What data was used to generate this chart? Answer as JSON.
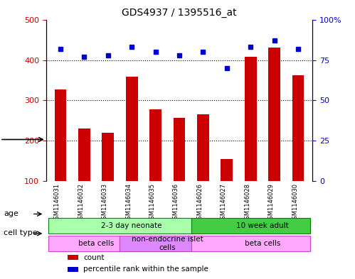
{
  "title": "GDS4937 / 1395516_at",
  "samples": [
    "GSM1146031",
    "GSM1146032",
    "GSM1146033",
    "GSM1146034",
    "GSM1146035",
    "GSM1146036",
    "GSM1146026",
    "GSM1146027",
    "GSM1146028",
    "GSM1146029",
    "GSM1146030"
  ],
  "counts": [
    328,
    230,
    220,
    358,
    278,
    257,
    265,
    155,
    408,
    430,
    362
  ],
  "percentiles": [
    82,
    77,
    78,
    83,
    80,
    78,
    80,
    70,
    83,
    87,
    82
  ],
  "bar_color": "#cc0000",
  "dot_color": "#0000cc",
  "ylim_left": [
    100,
    500
  ],
  "ylim_right": [
    0,
    100
  ],
  "yticks_left": [
    100,
    200,
    300,
    400,
    500
  ],
  "ytick_labels_left": [
    "100",
    "200",
    "300",
    "400",
    "500"
  ],
  "yticks_right": [
    0,
    25,
    50,
    75,
    100
  ],
  "ytick_labels_right": [
    "0",
    "25",
    "50",
    "75",
    "100%"
  ],
  "grid_values": [
    200,
    300,
    400
  ],
  "age_groups": [
    {
      "label": "2-3 day neonate",
      "start": 0,
      "end": 6,
      "color": "#aaffaa"
    },
    {
      "label": "10 week adult",
      "start": 6,
      "end": 11,
      "color": "#44cc44"
    }
  ],
  "cell_type_groups": [
    {
      "label": "beta cells",
      "start": 0,
      "end": 3,
      "color": "#ffaaff"
    },
    {
      "label": "non-endocrine islet\ncells",
      "start": 3,
      "end": 6,
      "color": "#dd88ff"
    },
    {
      "label": "beta cells",
      "start": 6,
      "end": 11,
      "color": "#ffaaff"
    }
  ],
  "legend_items": [
    {
      "color": "#cc0000",
      "label": "count"
    },
    {
      "color": "#0000cc",
      "label": "percentile rank within the sample"
    }
  ],
  "row_labels": [
    "age",
    "cell type"
  ],
  "background_color": "#ffffff",
  "plot_bg_color": "#ffffff",
  "tick_label_area_color": "#dddddd"
}
